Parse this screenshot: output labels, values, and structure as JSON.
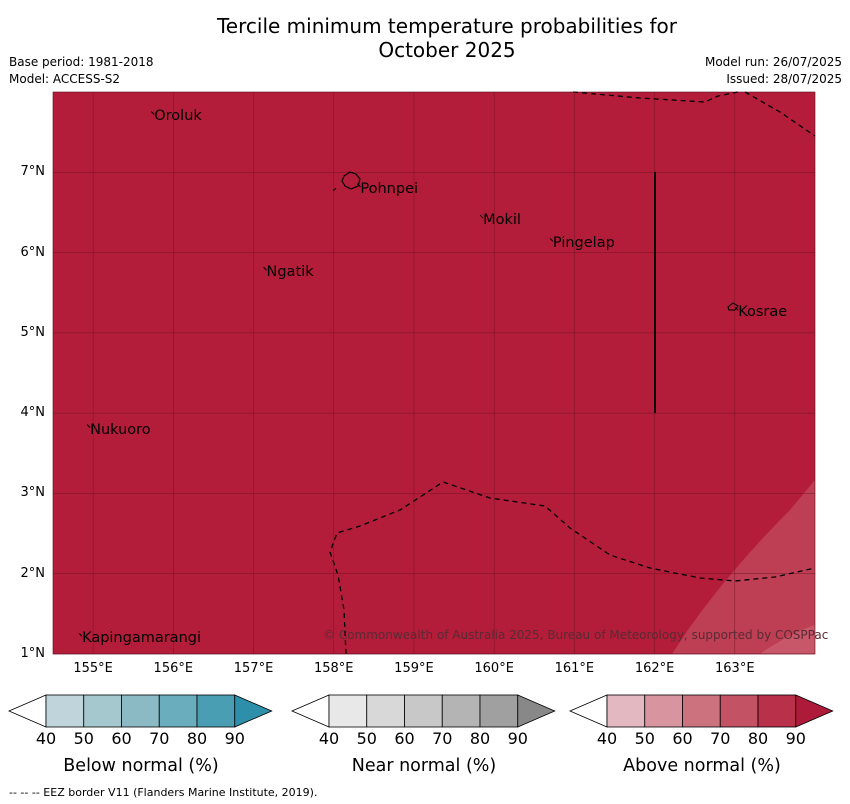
{
  "header": {
    "title_line1": "Tercile minimum temperature probabilities for",
    "title_line2": "October 2025",
    "base_period": "Base period: 1981-2018",
    "model": "Model: ACCESS-S2",
    "model_run": "Model run: 26/07/2025",
    "issued": "Issued: 28/07/2025"
  },
  "map": {
    "fill_color": "#b31d39",
    "lat_range": [
      1,
      8
    ],
    "lon_range": [
      154.5,
      164
    ],
    "lat_ticks": [
      {
        "value": 1,
        "label": "1°N"
      },
      {
        "value": 2,
        "label": "2°N"
      },
      {
        "value": 3,
        "label": "3°N"
      },
      {
        "value": 4,
        "label": "4°N"
      },
      {
        "value": 5,
        "label": "5°N"
      },
      {
        "value": 6,
        "label": "6°N"
      },
      {
        "value": 7,
        "label": "7°N"
      }
    ],
    "lon_ticks": [
      {
        "value": 155,
        "label": "155°E"
      },
      {
        "value": 156,
        "label": "156°E"
      },
      {
        "value": 157,
        "label": "157°E"
      },
      {
        "value": 158,
        "label": "158°E"
      },
      {
        "value": 159,
        "label": "159°E"
      },
      {
        "value": 160,
        "label": "160°E"
      },
      {
        "value": 161,
        "label": "161°E"
      },
      {
        "value": 162,
        "label": "162°E"
      },
      {
        "value": 163,
        "label": "163°E"
      }
    ],
    "places": [
      {
        "name": "Oroluk",
        "lon": 155.75,
        "lat": 7.72
      },
      {
        "name": "Pohnpei",
        "lon": 158.32,
        "lat": 6.82
      },
      {
        "name": "Mokil",
        "lon": 159.85,
        "lat": 6.43
      },
      {
        "name": "Pingelap",
        "lon": 160.72,
        "lat": 6.14
      },
      {
        "name": "Ngatik",
        "lon": 157.15,
        "lat": 5.78
      },
      {
        "name": "Kosrae",
        "lon": 163.03,
        "lat": 5.28
      },
      {
        "name": "Nukuoro",
        "lon": 154.95,
        "lat": 3.82
      },
      {
        "name": "Kapingamarangi",
        "lon": 154.85,
        "lat": 1.22
      }
    ],
    "copyright": "© Commonwealth of Australia 2025, Bureau of Meteorology, supported by COSPPac"
  },
  "colorbars": [
    {
      "label": "Below normal (%)",
      "colors": [
        "#ffffff",
        "#bfd5db",
        "#a5c8cf",
        "#8bbac4",
        "#6aadbd",
        "#4a9eb3",
        "#2d8fa9"
      ]
    },
    {
      "label": "Near normal (%)",
      "colors": [
        "#ffffff",
        "#e8e8e8",
        "#d8d8d8",
        "#c8c8c8",
        "#b4b4b4",
        "#a0a0a0",
        "#888888"
      ]
    },
    {
      "label": "Above normal (%)",
      "colors": [
        "#ffffff",
        "#e3b8c0",
        "#d8959f",
        "#cc727f",
        "#c25264",
        "#b8304a",
        "#ad1a3a"
      ]
    }
  ],
  "colorbar_ticks": [
    "40",
    "50",
    "60",
    "70",
    "80",
    "90"
  ],
  "footer_note": "--  --  -- EEZ border V11 (Flanders Marine Institute, 2019)."
}
